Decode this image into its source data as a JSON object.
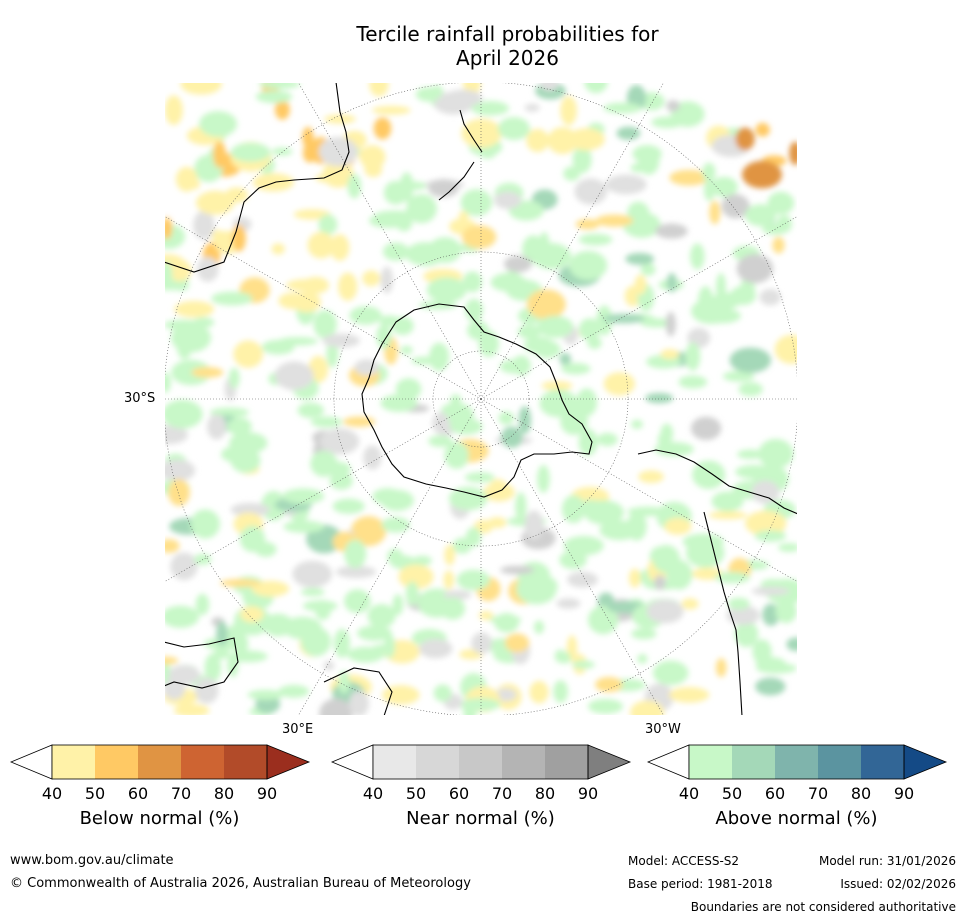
{
  "title_line1": "Tercile rainfall probabilities for",
  "title_line2": "April 2026",
  "map": {
    "lat_label": "30°S",
    "lon_label_east": "30°E",
    "lon_label_west": "30°W"
  },
  "colorbars": [
    {
      "label": "Below normal (%)",
      "ticks": [
        "40",
        "50",
        "60",
        "70",
        "80",
        "90"
      ],
      "colors": [
        "#fff2a8",
        "#ffc964",
        "#e09443",
        "#ce6432",
        "#b24b29",
        "#9b2e1e"
      ]
    },
    {
      "label": "Near normal (%)",
      "ticks": [
        "40",
        "50",
        "60",
        "70",
        "80",
        "90"
      ],
      "colors": [
        "#e8e8e8",
        "#d7d7d7",
        "#c8c8c8",
        "#b4b4b4",
        "#a0a0a0",
        "#7f7f7f"
      ]
    },
    {
      "label": "Above normal (%)",
      "ticks": [
        "40",
        "50",
        "60",
        "70",
        "80",
        "90"
      ],
      "colors": [
        "#c8f8c8",
        "#a4d8b8",
        "#7fb4ac",
        "#5b94a0",
        "#326696",
        "#144a86"
      ]
    }
  ],
  "footer": {
    "url": "www.bom.gov.au/climate",
    "copyright": "© Commonwealth of Australia 2026, Australian Bureau of Meteorology",
    "model": "Model: ACCESS-S2",
    "base_period": "Base period: 1981-2018",
    "model_run": "Model run: 31/01/2026",
    "issued": "Issued: 02/02/2026",
    "disclaimer": "Boundaries are not considered authoritative"
  }
}
